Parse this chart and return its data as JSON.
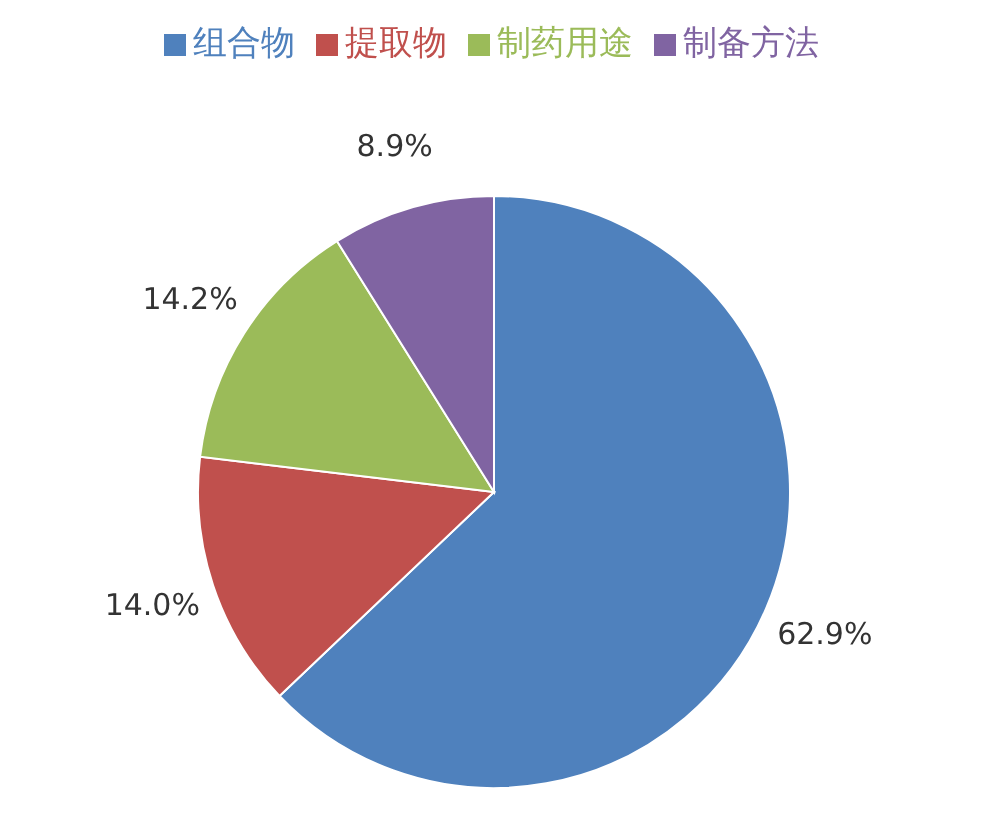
{
  "chart_data": {
    "type": "pie",
    "categories": [
      "组合物",
      "提取物",
      "制药用途",
      "制备方法"
    ],
    "values": [
      62.9,
      14.0,
      14.2,
      8.9
    ],
    "colors": [
      "#4f81bd",
      "#c0504d",
      "#9bbb59",
      "#8064a2"
    ],
    "value_labels": [
      "62.9%",
      "14.0%",
      "14.2%",
      "8.9%"
    ],
    "legend": "top"
  }
}
